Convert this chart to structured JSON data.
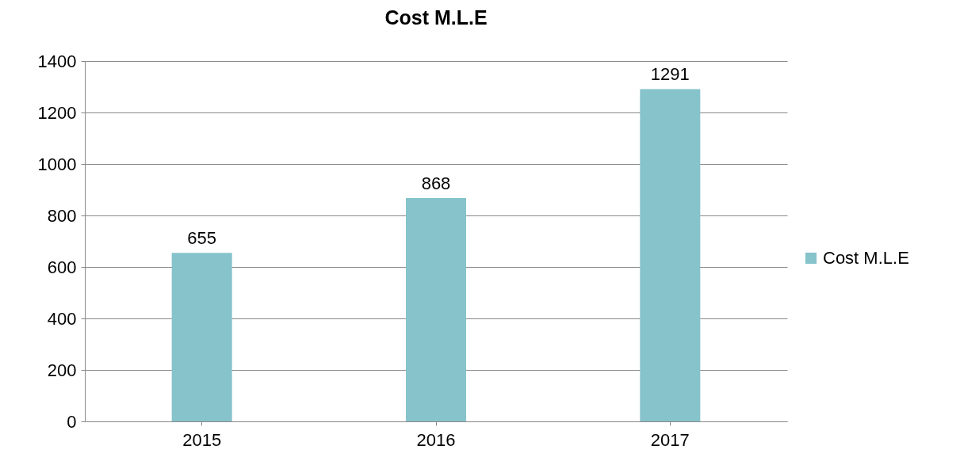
{
  "chart_data": {
    "type": "bar",
    "title": "Cost M.L.E",
    "categories": [
      "2015",
      "2016",
      "2017"
    ],
    "series": [
      {
        "name": "Cost M.L.E",
        "color": "#86c3cb",
        "values": [
          655,
          868,
          1291
        ]
      }
    ],
    "ylim": [
      0,
      1400
    ],
    "yticks": [
      0,
      200,
      400,
      600,
      800,
      1000,
      1200,
      1400
    ],
    "grid": "y",
    "legend": "right",
    "data_labels": true
  }
}
